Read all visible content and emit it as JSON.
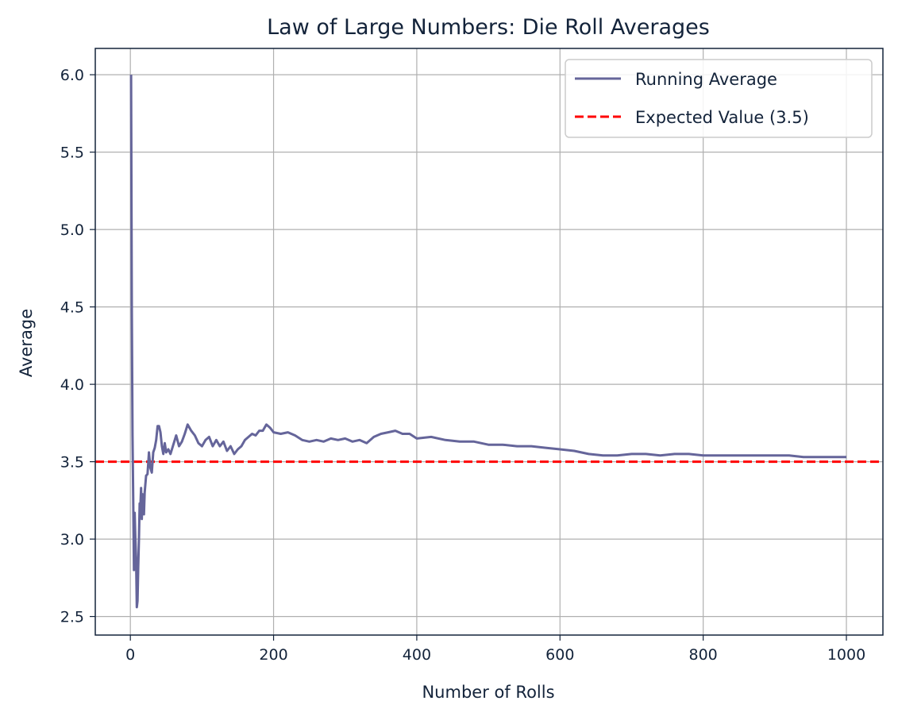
{
  "chart_data": {
    "type": "line",
    "title": "Law of Large Numbers: Die Roll Averages",
    "xlabel": "Number of Rolls",
    "ylabel": "Average",
    "xlim": [
      -49,
      1051
    ],
    "ylim": [
      2.38,
      6.17
    ],
    "xticks": [
      0,
      200,
      400,
      600,
      800,
      1000
    ],
    "xtick_labels": [
      "0",
      "200",
      "400",
      "600",
      "800",
      "1000"
    ],
    "yticks": [
      2.5,
      3.0,
      3.5,
      4.0,
      4.5,
      5.0,
      5.5,
      6.0
    ],
    "ytick_labels": [
      "2.5",
      "3.0",
      "3.5",
      "4.0",
      "4.5",
      "5.0",
      "5.5",
      "6.0"
    ],
    "grid": true,
    "legend_position": "top-right",
    "series": [
      {
        "name": "Running Average",
        "color": "#65659a",
        "style": "solid",
        "x": [
          1,
          2,
          3,
          4,
          5,
          6,
          7,
          8,
          9,
          10,
          11,
          12,
          13,
          14,
          15,
          16,
          17,
          18,
          19,
          20,
          22,
          24,
          26,
          28,
          30,
          32,
          34,
          36,
          38,
          40,
          42,
          44,
          46,
          48,
          50,
          53,
          56,
          60,
          64,
          68,
          72,
          76,
          80,
          85,
          90,
          95,
          100,
          105,
          110,
          115,
          120,
          125,
          130,
          135,
          140,
          145,
          150,
          155,
          160,
          165,
          170,
          175,
          180,
          185,
          190,
          195,
          200,
          210,
          220,
          230,
          240,
          250,
          260,
          270,
          280,
          290,
          300,
          310,
          320,
          330,
          340,
          350,
          360,
          370,
          380,
          390,
          400,
          420,
          440,
          460,
          480,
          500,
          520,
          540,
          560,
          580,
          600,
          620,
          640,
          660,
          680,
          700,
          720,
          740,
          760,
          780,
          800,
          820,
          840,
          860,
          880,
          900,
          920,
          940,
          960,
          980,
          1000
        ],
        "values": [
          6.0,
          4.5,
          3.67,
          3.25,
          2.8,
          3.17,
          3.0,
          2.88,
          2.56,
          2.6,
          2.82,
          3.0,
          3.23,
          3.21,
          3.33,
          3.13,
          3.29,
          3.22,
          3.16,
          3.3,
          3.41,
          3.42,
          3.56,
          3.46,
          3.43,
          3.56,
          3.59,
          3.64,
          3.73,
          3.73,
          3.69,
          3.6,
          3.55,
          3.62,
          3.56,
          3.58,
          3.55,
          3.61,
          3.67,
          3.6,
          3.63,
          3.68,
          3.74,
          3.7,
          3.67,
          3.62,
          3.6,
          3.64,
          3.66,
          3.6,
          3.64,
          3.6,
          3.63,
          3.57,
          3.6,
          3.55,
          3.58,
          3.6,
          3.64,
          3.66,
          3.68,
          3.67,
          3.7,
          3.7,
          3.74,
          3.72,
          3.69,
          3.68,
          3.69,
          3.67,
          3.64,
          3.63,
          3.64,
          3.63,
          3.65,
          3.64,
          3.65,
          3.63,
          3.64,
          3.62,
          3.66,
          3.68,
          3.69,
          3.7,
          3.68,
          3.68,
          3.65,
          3.66,
          3.64,
          3.63,
          3.63,
          3.61,
          3.61,
          3.6,
          3.6,
          3.59,
          3.58,
          3.57,
          3.55,
          3.54,
          3.54,
          3.55,
          3.55,
          3.54,
          3.55,
          3.55,
          3.54,
          3.54,
          3.54,
          3.54,
          3.54,
          3.54,
          3.54,
          3.53,
          3.53,
          3.53,
          3.53
        ]
      },
      {
        "name": "Expected Value (3.5)",
        "color": "#ff0000",
        "style": "dashed",
        "y": 3.5
      }
    ]
  }
}
